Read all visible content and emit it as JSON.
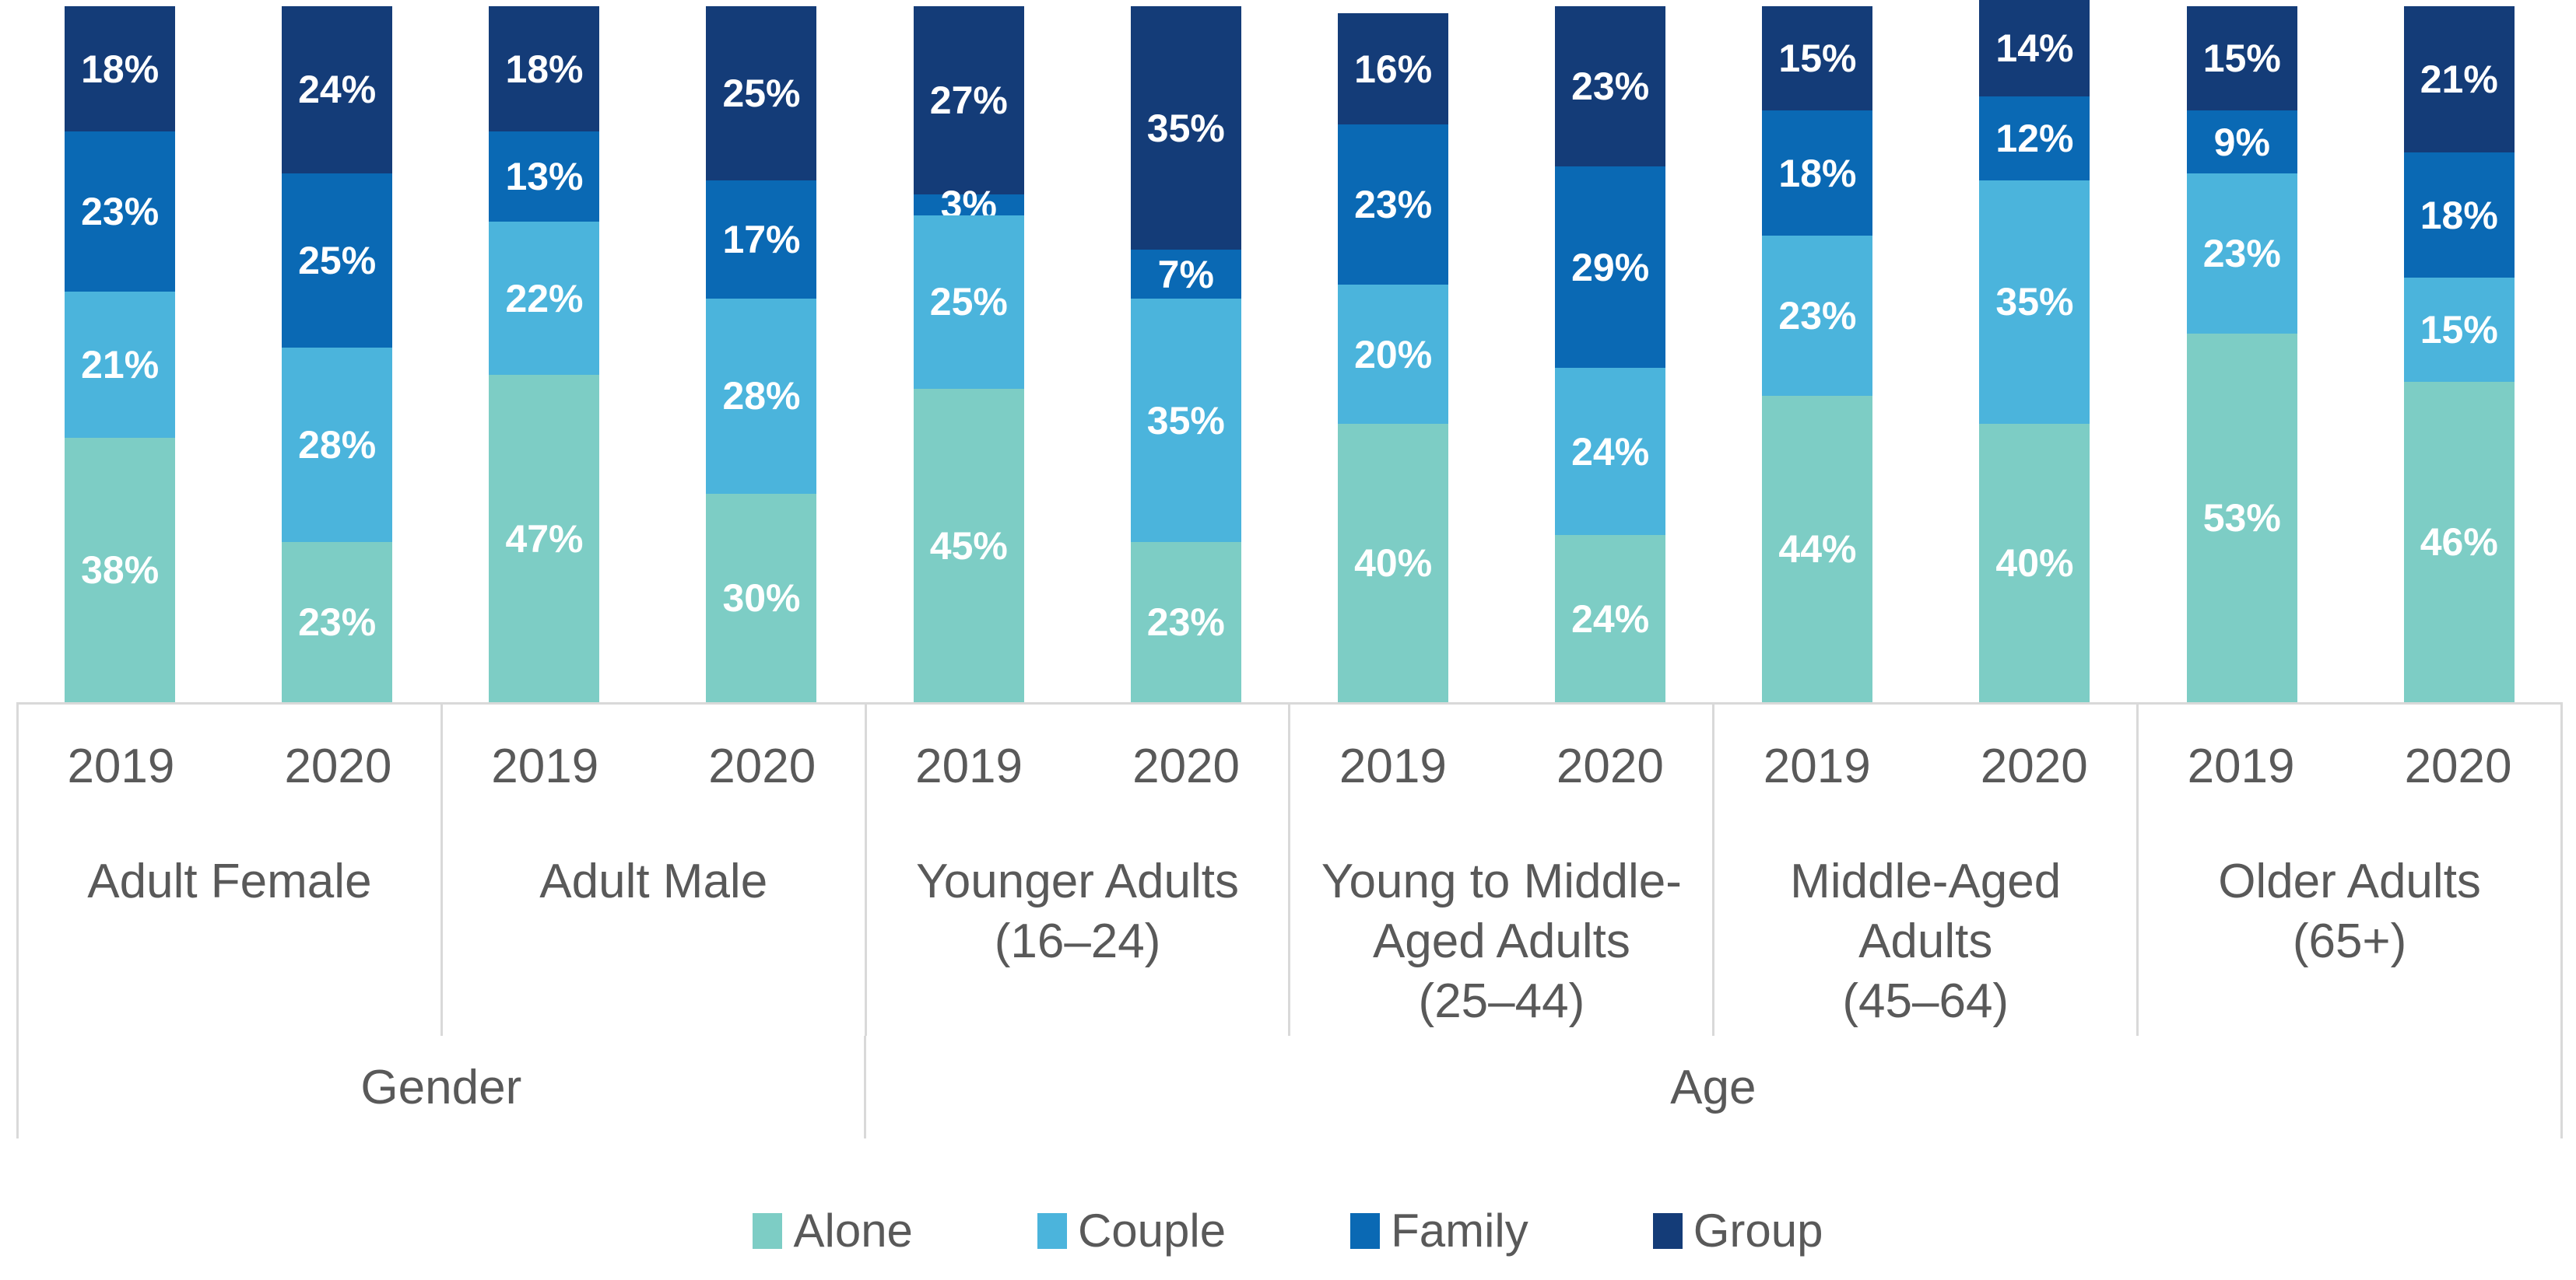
{
  "chart_data": {
    "type": "bar",
    "stacked": true,
    "value_unit": "%",
    "ylim": [
      0,
      100
    ],
    "gridlines": false,
    "data_labels_shown": true,
    "legend_position": "bottom",
    "colors": {
      "axis_line": "#D9D9D9",
      "axis_text": "#595959",
      "bar_label_text": "#FFFFFF"
    },
    "series": [
      {
        "label": "Alone",
        "color": "#7DCDC5"
      },
      {
        "label": "Couple",
        "color": "#4BB4DC"
      },
      {
        "label": "Family",
        "color": "#0A69B4"
      },
      {
        "label": "Group",
        "color": "#143C78"
      }
    ],
    "years": [
      "2019",
      "2020"
    ],
    "groups": [
      {
        "label_lines": [
          "Adult Female"
        ],
        "bars": [
          {
            "year": "2019",
            "values": [
              38,
              21,
              23,
              18
            ]
          },
          {
            "year": "2020",
            "values": [
              23,
              28,
              25,
              24
            ]
          }
        ]
      },
      {
        "label_lines": [
          "Adult Male"
        ],
        "bars": [
          {
            "year": "2019",
            "values": [
              47,
              22,
              13,
              18
            ]
          },
          {
            "year": "2020",
            "values": [
              30,
              28,
              17,
              25
            ]
          }
        ]
      },
      {
        "label_lines": [
          "Younger Adults",
          "(16–24)"
        ],
        "bars": [
          {
            "year": "2019",
            "values": [
              45,
              25,
              3,
              27
            ]
          },
          {
            "year": "2020",
            "values": [
              23,
              35,
              7,
              35
            ]
          }
        ]
      },
      {
        "label_lines": [
          "Young to Middle-",
          "Aged Adults",
          "(25–44)"
        ],
        "bars": [
          {
            "year": "2019",
            "values": [
              40,
              20,
              23,
              16
            ]
          },
          {
            "year": "2020",
            "values": [
              24,
              24,
              29,
              23
            ]
          }
        ]
      },
      {
        "label_lines": [
          "Middle-Aged",
          "Adults",
          "(45–64)"
        ],
        "bars": [
          {
            "year": "2019",
            "values": [
              44,
              23,
              18,
              15
            ]
          },
          {
            "year": "2020",
            "values": [
              40,
              35,
              12,
              14
            ]
          }
        ]
      },
      {
        "label_lines": [
          "Older Adults",
          "(65+)"
        ],
        "bars": [
          {
            "year": "2019",
            "values": [
              53,
              23,
              9,
              15
            ]
          },
          {
            "year": "2020",
            "values": [
              46,
              15,
              18,
              21
            ]
          }
        ]
      }
    ],
    "top_groups": [
      {
        "label": "Gender",
        "span": 2
      },
      {
        "label": "Age",
        "span": 4
      }
    ],
    "legend": [
      "Alone",
      "Couple",
      "Family",
      "Group"
    ]
  }
}
